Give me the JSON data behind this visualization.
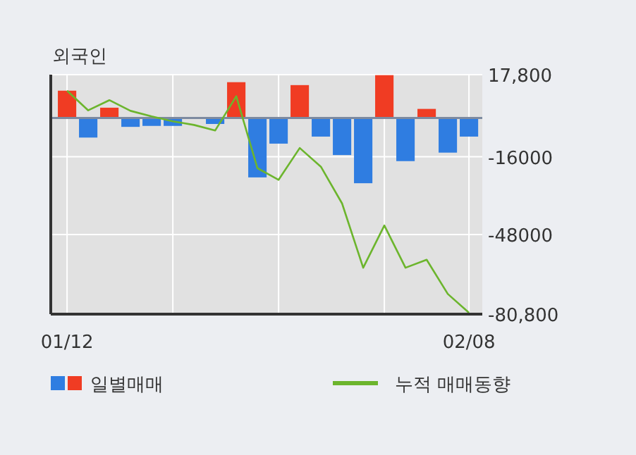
{
  "chart_data": {
    "type": "bar",
    "title": "외국인",
    "categories": [
      "01/12",
      null,
      null,
      null,
      null,
      null,
      null,
      null,
      null,
      null,
      null,
      null,
      null,
      null,
      null,
      null,
      null,
      null,
      null,
      "02/08"
    ],
    "series": [
      {
        "name": "일별매매",
        "values": [
          11200,
          -8100,
          4200,
          -3700,
          -3300,
          -3300,
          0,
          -2500,
          14700,
          -24500,
          -10600,
          13500,
          -7700,
          -15300,
          -26900,
          17600,
          -17800,
          3700,
          -14300,
          -7700
        ],
        "colors": [
          "#f03c23",
          "#2f7de1",
          "#f03c23",
          "#2f7de1",
          "#2f7de1",
          "#2f7de1",
          "#2f7de1",
          "#2f7de1",
          "#f03c23",
          "#2f7de1",
          "#2f7de1",
          "#f03c23",
          "#2f7de1",
          "#2f7de1",
          "#2f7de1",
          "#f03c23",
          "#2f7de1",
          "#f03c23",
          "#2f7de1",
          "#2f7de1"
        ]
      },
      {
        "name": "누적 매매동향",
        "type": "line",
        "color": "#6cb52d",
        "values": [
          11200,
          3100,
          7300,
          2900,
          600,
          -1400,
          -2900,
          -5200,
          8900,
          -20700,
          -25500,
          -12400,
          -20100,
          -35200,
          -61700,
          -44300,
          -61700,
          -58400,
          -72500,
          -80200
        ]
      }
    ],
    "ylim": [
      -80800,
      17800
    ],
    "yticks": [
      {
        "value": 17800,
        "label": "17,800"
      },
      {
        "value": -16000,
        "label": "-16000"
      },
      {
        "value": -48000,
        "label": "-48000"
      },
      {
        "value": -80800,
        "label": "-80,800"
      }
    ],
    "grid": true,
    "legend": "bottom"
  }
}
